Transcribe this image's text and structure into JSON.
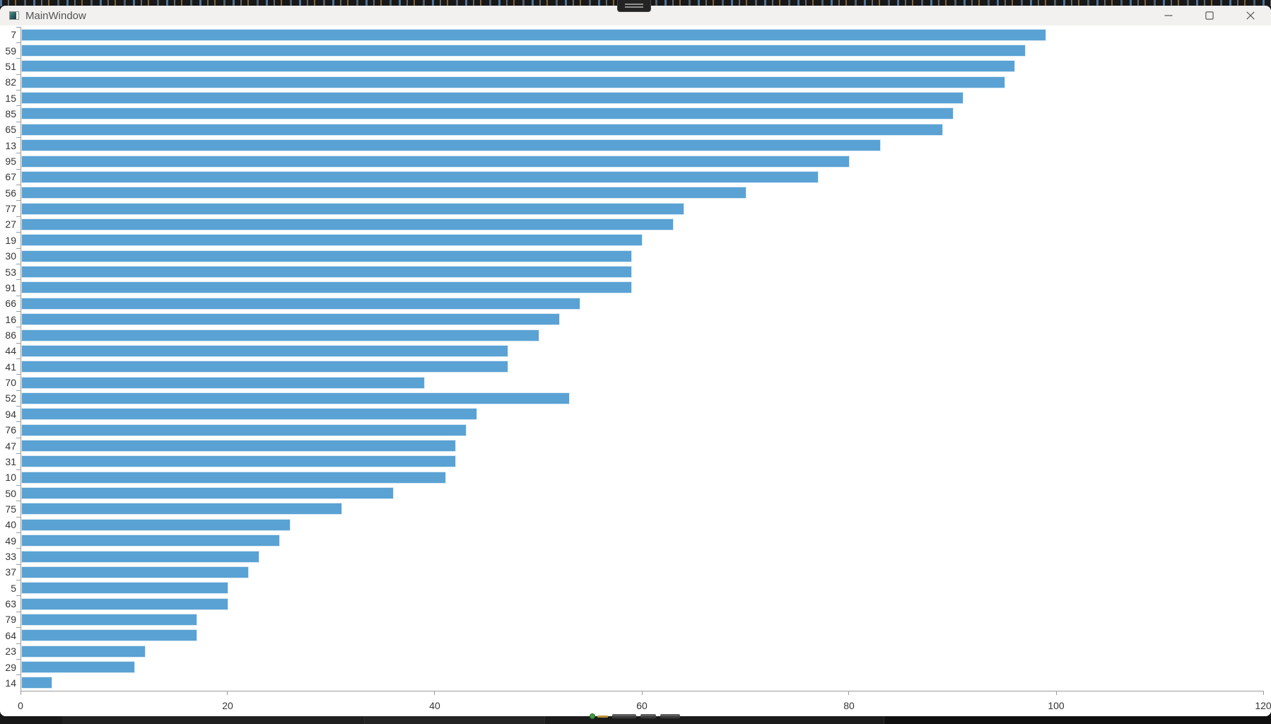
{
  "window": {
    "title": "MainWindow",
    "icon": "app-window-icon",
    "controls": {
      "minimize": "minimize-icon",
      "maximize": "maximize-icon",
      "close": "close-icon"
    }
  },
  "overlays": {
    "top_center_tab": "drag-handle-icon",
    "bottom_status": {
      "icons": [
        "green-dot-icon",
        "orange-dash-icon"
      ],
      "note_text": ""
    }
  },
  "chart_data": {
    "type": "bar",
    "orientation": "horizontal",
    "title": "",
    "xlabel": "",
    "ylabel": "",
    "grid": false,
    "legend": false,
    "bar_color": "#5aa2d3",
    "bar_edge_color": "#d9e9f5",
    "xlim": [
      0,
      120
    ],
    "x_ticks": [
      0,
      20,
      40,
      60,
      80,
      100,
      120
    ],
    "categories": [
      7,
      59,
      51,
      82,
      15,
      85,
      65,
      13,
      95,
      67,
      56,
      77,
      27,
      19,
      30,
      53,
      91,
      66,
      16,
      86,
      44,
      41,
      70,
      52,
      94,
      76,
      47,
      31,
      10,
      50,
      75,
      40,
      49,
      33,
      37,
      5,
      63,
      79,
      64,
      23,
      29,
      14
    ],
    "values": [
      99,
      97,
      96,
      95,
      91,
      90,
      89,
      83,
      80,
      77,
      70,
      64,
      63,
      60,
      59,
      59,
      59,
      54,
      52,
      50,
      47,
      47,
      39,
      53,
      44,
      43,
      42,
      42,
      41,
      36,
      31,
      26,
      25,
      23,
      22,
      20,
      20,
      17,
      17,
      12,
      11,
      3
    ]
  }
}
